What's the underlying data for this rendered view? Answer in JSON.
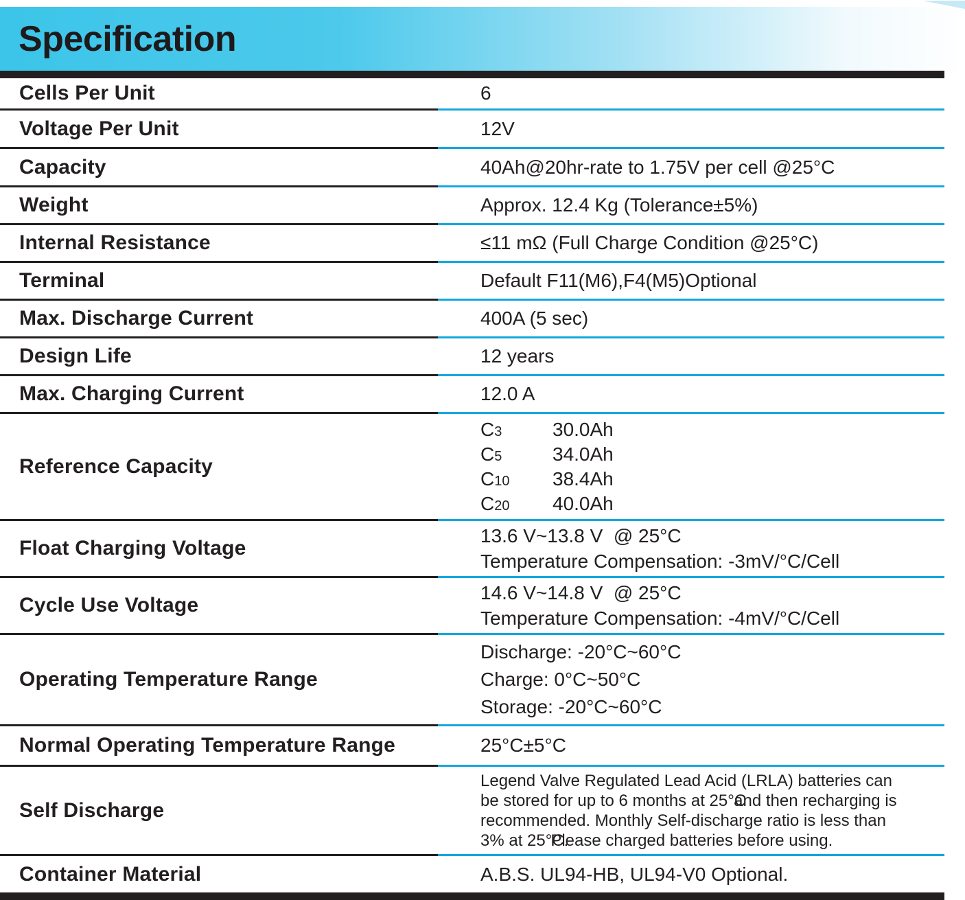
{
  "header": {
    "title": "Specification"
  },
  "colors": {
    "accent_cyan": "#3CC5E9",
    "rule_cyan": "#14A7DF",
    "rule_black": "#231F20",
    "text": "#231F20"
  },
  "table": {
    "rows": [
      {
        "label": "Cells Per Unit",
        "value": "6"
      },
      {
        "label": "Voltage Per Unit",
        "value": "12V"
      },
      {
        "label": "Capacity",
        "value": "40Ah@20hr-rate to 1.75V per cell @25°C"
      },
      {
        "label": "Weight",
        "value": "Approx. 12.4 Kg (Tolerance±5%)"
      },
      {
        "label": "Internal Resistance",
        "value": "≤11 mΩ (Full Charge Condition @25°C)"
      },
      {
        "label": "Terminal",
        "value": "Default F11(M6),F4(M5)Optional"
      },
      {
        "label": "Max. Discharge Current",
        "value": "400A (5 sec)"
      },
      {
        "label": "Design Life",
        "value": "12 years"
      },
      {
        "label": "Max. Charging Current",
        "value": "12.0 A"
      },
      {
        "label": "Reference Capacity",
        "entries": [
          {
            "name": "C",
            "sub": "3",
            "value": "30.0Ah"
          },
          {
            "name": "C",
            "sub": "5",
            "value": "34.0Ah"
          },
          {
            "name": "C",
            "sub": "10",
            "value": "38.4Ah"
          },
          {
            "name": "C",
            "sub": "20",
            "value": "40.0Ah"
          }
        ]
      },
      {
        "label": "Float Charging Voltage",
        "lines": [
          "13.6 V~13.8 V  @ 25°C",
          "Temperature Compensation: -3mV/°C/Cell"
        ]
      },
      {
        "label": "Cycle Use Voltage",
        "lines": [
          "14.6 V~14.8 V  @ 25°C",
          "Temperature Compensation: -4mV/°C/Cell"
        ]
      },
      {
        "label": "Operating Temperature Range",
        "lines": [
          "Discharge: -20°C~60°C",
          "Charge: 0°C~50°C",
          "Storage: -20°C~60°C"
        ]
      },
      {
        "label": "Normal Operating Temperature Range",
        "value": "25°C±5°C"
      },
      {
        "label": "Self Discharge",
        "line1": "Legend Valve Regulated Lead Acid (LRLA) batteries can",
        "line2a": "be stored for up to 6 months at 25°C",
        "line2b": "and then recharging is",
        "line3": "recommended. Monthly Self-discharge ratio is less than",
        "line4a": "3% at 25°C.",
        "line4b": "Please charged batteries before using."
      },
      {
        "label": "Container Material",
        "value": "A.B.S. UL94-HB, UL94-V0 Optional."
      }
    ]
  }
}
